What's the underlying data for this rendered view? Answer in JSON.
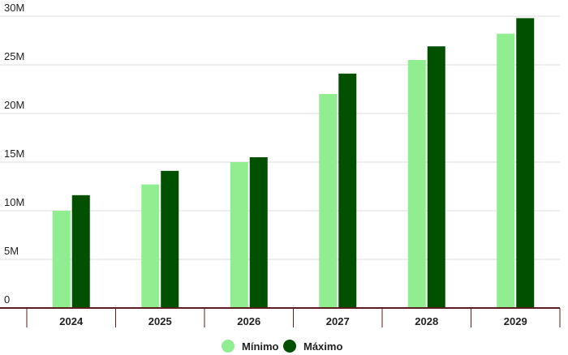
{
  "chart_data": {
    "type": "bar",
    "categories": [
      "2024",
      "2025",
      "2026",
      "2027",
      "2028",
      "2029"
    ],
    "series": [
      {
        "name": "Mínimo",
        "color": "#90ee90",
        "values": [
          10.0,
          12.7,
          15.0,
          22.0,
          25.5,
          28.2
        ]
      },
      {
        "name": "Máximo",
        "color": "#005000",
        "values": [
          11.6,
          14.1,
          15.5,
          24.1,
          26.9,
          29.8
        ]
      }
    ],
    "ylim": [
      0,
      30
    ],
    "yticks": [
      {
        "value": 0,
        "label": "0"
      },
      {
        "value": 5,
        "label": "5M"
      },
      {
        "value": 10,
        "label": "10M"
      },
      {
        "value": 15,
        "label": "15M"
      },
      {
        "value": 20,
        "label": "20M"
      },
      {
        "value": 25,
        "label": "25M"
      },
      {
        "value": 30,
        "label": "30M"
      }
    ],
    "title": "",
    "xlabel": "",
    "ylabel": "",
    "grid": true,
    "legend_position": "bottom-center",
    "axis_color": "#5a1e1e",
    "grid_color": "#dddddd"
  }
}
